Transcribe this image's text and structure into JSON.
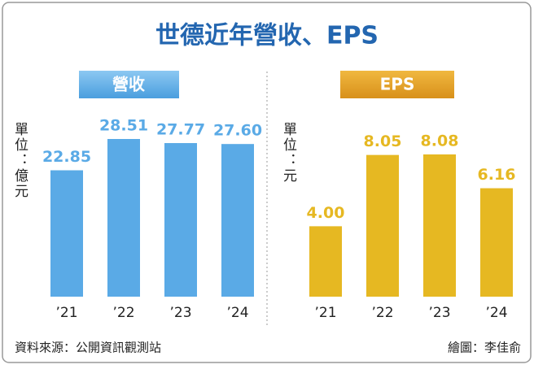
{
  "title": "世德近年營收、EPS",
  "source": "資料來源：公開資訊觀測站",
  "credit": "繪圖：李佳俞",
  "chart_data": [
    {
      "type": "bar",
      "title": "營收",
      "unit": "單位：億元",
      "categories": [
        "’21",
        "’22",
        "’23",
        "’24"
      ],
      "values": [
        22.85,
        28.51,
        27.77,
        27.6
      ],
      "value_labels": [
        "22.85",
        "28.51",
        "27.77",
        "27.60"
      ],
      "color": "#5aaae6"
    },
    {
      "type": "bar",
      "title": "EPS",
      "unit": "單位：元",
      "categories": [
        "’21",
        "’22",
        "’23",
        "’24"
      ],
      "values": [
        4.0,
        8.05,
        8.08,
        6.16
      ],
      "value_labels": [
        "4.00",
        "8.05",
        "8.08",
        "6.16"
      ],
      "color": "#e6b822"
    }
  ]
}
